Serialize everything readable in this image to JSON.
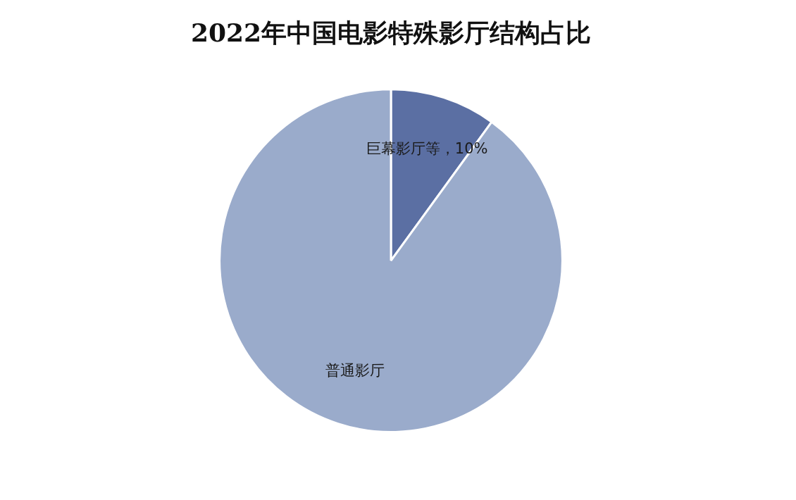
{
  "chart_data": {
    "type": "pie",
    "title": "2022年中国电影特殊影厅结构占比",
    "categories": [
      "巨幕影厅等",
      "普通影厅"
    ],
    "values": [
      10,
      90
    ],
    "value_labels": [
      "，10%",
      null
    ],
    "colors": [
      "#5b6fa3",
      "#9aabcb"
    ]
  }
}
